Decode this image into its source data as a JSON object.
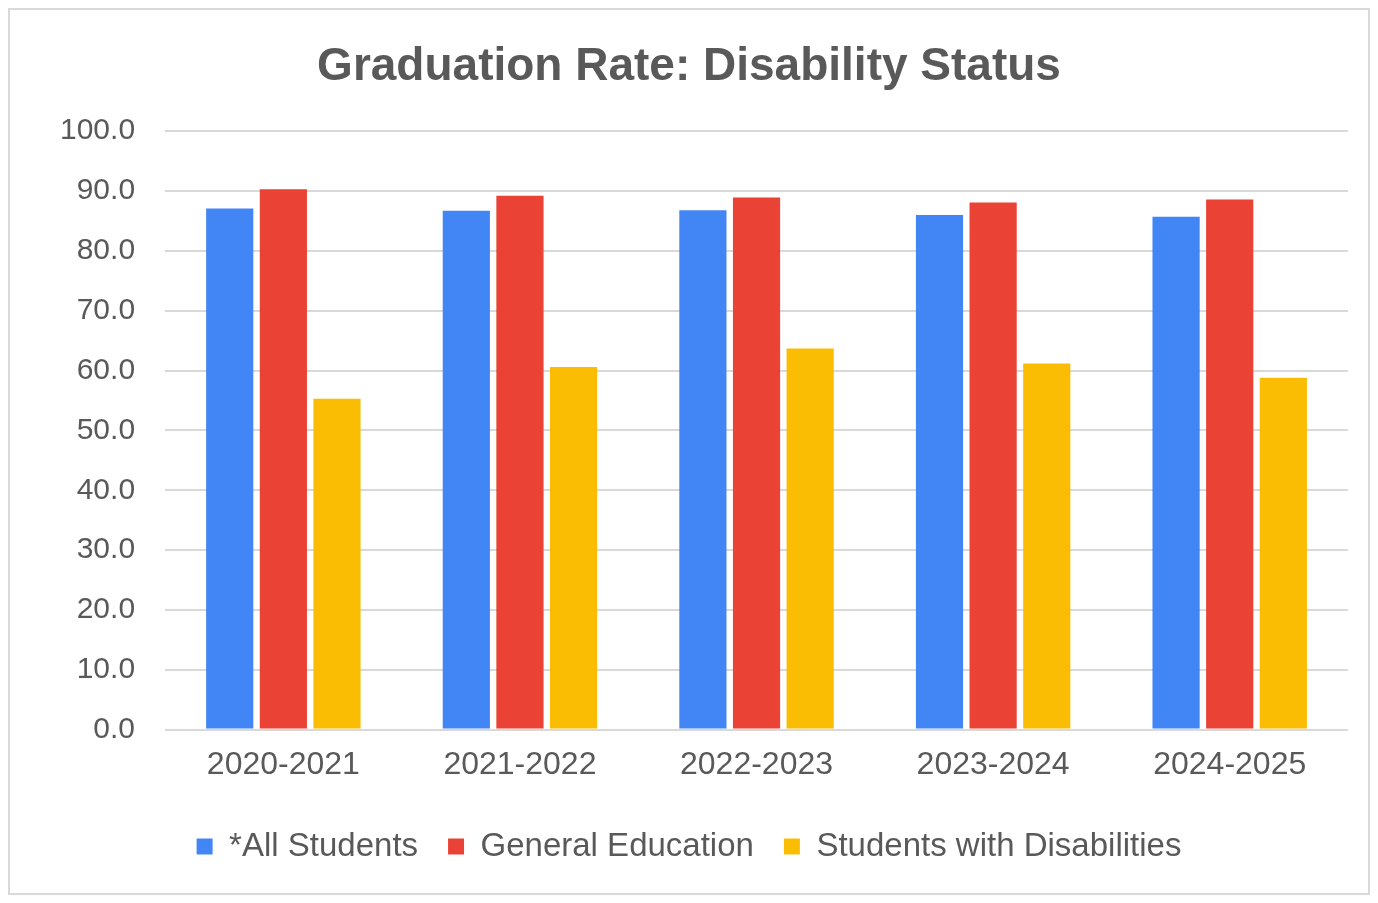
{
  "chart_data": {
    "type": "bar",
    "title": "Graduation Rate: Disability Status",
    "categories": [
      "2020-2021",
      "2021-2022",
      "2022-2023",
      "2023-2024",
      "2024-2025"
    ],
    "series": [
      {
        "name": "*All Students",
        "color": "#4285f4",
        "values": [
          87.1,
          86.7,
          86.8,
          86.0,
          85.7
        ]
      },
      {
        "name": "General Education",
        "color": "#ea4335",
        "values": [
          90.3,
          89.2,
          88.9,
          88.1,
          88.6
        ]
      },
      {
        "name": "Students with Disabilities",
        "color": "#fbbc04",
        "values": [
          55.3,
          60.6,
          63.7,
          61.2,
          58.8
        ]
      }
    ],
    "ylim": [
      0,
      100
    ],
    "yticks": [
      {
        "value": 0,
        "label": "0.0"
      },
      {
        "value": 10,
        "label": "10.0"
      },
      {
        "value": 20,
        "label": "20.0"
      },
      {
        "value": 30,
        "label": "30.0"
      },
      {
        "value": 40,
        "label": "40.0"
      },
      {
        "value": 50,
        "label": "50.0"
      },
      {
        "value": 60,
        "label": "60.0"
      },
      {
        "value": 70,
        "label": "70.0"
      },
      {
        "value": 80,
        "label": "80.0"
      },
      {
        "value": 90,
        "label": "90.0"
      },
      {
        "value": 100,
        "label": "100.0"
      }
    ],
    "grid": "y",
    "legend": "bottom"
  }
}
